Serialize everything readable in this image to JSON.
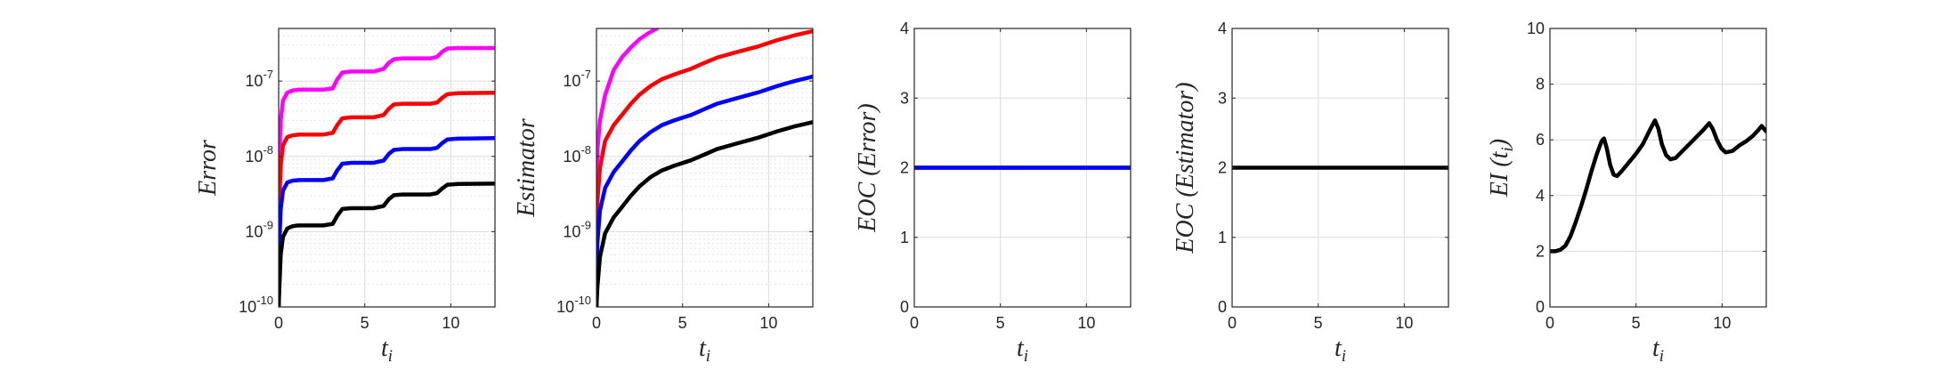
{
  "figure": {
    "background": "#ffffff"
  },
  "chart_data": [
    {
      "type": "line",
      "yscale": "log",
      "xlabel": "t_i",
      "ylabel": "Error",
      "xlim": [
        0,
        12.566
      ],
      "ylim": [
        1e-10,
        5e-07
      ],
      "xticks": [
        0,
        5,
        10
      ],
      "yticks": [
        1e-10,
        1e-09,
        1e-08,
        1e-07
      ],
      "ytick_labels": [
        "10^-10",
        "10^-9",
        "10^-8",
        "10^-7"
      ],
      "grid": true,
      "series": [
        {
          "color": "#ff00ff",
          "x": [
            0,
            0.05,
            0.12,
            0.25,
            0.5,
            0.8,
            1.0,
            1.2,
            2.6,
            3.14,
            3.4,
            3.7,
            4.2,
            5.5,
            6.1,
            6.4,
            6.7,
            7.2,
            8.8,
            9.2,
            9.5,
            9.8,
            10.4,
            12.566
          ],
          "y": [
            1e-10,
            1.2e-08,
            3e-08,
            5.5e-08,
            7e-08,
            7.5e-08,
            7.6e-08,
            7.7e-08,
            7.7e-08,
            8e-08,
            1.05e-07,
            1.3e-07,
            1.34e-07,
            1.34e-07,
            1.45e-07,
            1.75e-07,
            1.95e-07,
            2e-07,
            2e-07,
            2.1e-07,
            2.45e-07,
            2.7e-07,
            2.75e-07,
            2.75e-07
          ]
        },
        {
          "color": "#ff0000",
          "x": [
            0,
            0.05,
            0.12,
            0.25,
            0.5,
            0.8,
            1.0,
            1.2,
            2.6,
            3.14,
            3.4,
            3.7,
            4.2,
            5.5,
            6.1,
            6.4,
            6.7,
            7.2,
            8.8,
            9.2,
            9.5,
            9.8,
            10.4,
            12.566
          ],
          "y": [
            1e-10,
            3e-09,
            7.5e-09,
            1.4e-08,
            1.8e-08,
            1.9e-08,
            1.93e-08,
            1.95e-08,
            1.95e-08,
            2.05e-08,
            2.6e-08,
            3.2e-08,
            3.3e-08,
            3.3e-08,
            3.55e-08,
            4.3e-08,
            4.9e-08,
            5e-08,
            5e-08,
            5.2e-08,
            6e-08,
            6.7e-08,
            6.9e-08,
            7e-08
          ]
        },
        {
          "color": "#0000ff",
          "x": [
            0,
            0.05,
            0.12,
            0.25,
            0.5,
            0.8,
            1.0,
            1.2,
            2.6,
            3.14,
            3.4,
            3.7,
            4.2,
            5.5,
            6.1,
            6.4,
            6.7,
            7.2,
            8.8,
            9.2,
            9.5,
            9.8,
            10.4,
            12.566
          ],
          "y": [
            1e-10,
            8e-10,
            2e-09,
            3.5e-09,
            4.5e-09,
            4.75e-09,
            4.8e-09,
            4.85e-09,
            4.85e-09,
            5.1e-09,
            6.5e-09,
            8e-09,
            8.2e-09,
            8.2e-09,
            8.8e-09,
            1.08e-08,
            1.22e-08,
            1.25e-08,
            1.25e-08,
            1.3e-08,
            1.5e-08,
            1.68e-08,
            1.72e-08,
            1.75e-08
          ]
        },
        {
          "color": "#000000",
          "x": [
            0,
            0.05,
            0.12,
            0.25,
            0.5,
            0.8,
            1.0,
            1.2,
            2.6,
            3.14,
            3.4,
            3.7,
            4.2,
            5.5,
            6.1,
            6.4,
            6.7,
            7.2,
            8.8,
            9.2,
            9.5,
            9.8,
            10.4,
            12.566
          ],
          "y": [
            1e-10,
            2e-10,
            5e-10,
            8.5e-10,
            1.1e-09,
            1.18e-09,
            1.2e-09,
            1.21e-09,
            1.21e-09,
            1.27e-09,
            1.62e-09,
            2e-09,
            2.05e-09,
            2.05e-09,
            2.2e-09,
            2.7e-09,
            3.05e-09,
            3.12e-09,
            3.12e-09,
            3.25e-09,
            3.75e-09,
            4.2e-09,
            4.3e-09,
            4.35e-09
          ]
        }
      ]
    },
    {
      "type": "line",
      "yscale": "log",
      "xlabel": "t_i",
      "ylabel": "Estimator",
      "xlim": [
        0,
        12.566
      ],
      "ylim": [
        1e-10,
        5e-07
      ],
      "xticks": [
        0,
        5,
        10
      ],
      "yticks": [
        1e-10,
        1e-09,
        1e-08,
        1e-07
      ],
      "ytick_labels": [
        "10^-10",
        "10^-9",
        "10^-8",
        "10^-7"
      ],
      "grid": true,
      "series": [
        {
          "color": "#ff00ff",
          "x": [
            0,
            0.05,
            0.2,
            0.5,
            1.0,
            1.5,
            2.0,
            2.5,
            3.0,
            3.5
          ],
          "y": [
            1e-10,
            1.2e-08,
            3e-08,
            6.5e-08,
            1.4e-07,
            2.1e-07,
            2.8e-07,
            3.6e-07,
            4.3e-07,
            5e-07
          ]
        },
        {
          "color": "#ff0000",
          "x": [
            0,
            0.05,
            0.2,
            0.5,
            1.0,
            1.5,
            2.0,
            2.5,
            3.14,
            3.8,
            4.5,
            5.5,
            6.28,
            7.0,
            8.0,
            9.42,
            10.5,
            11.5,
            12.566
          ],
          "y": [
            1e-10,
            2.5e-09,
            7e-09,
            1.6e-08,
            2.6e-08,
            3.6e-08,
            5e-08,
            6.6e-08,
            8.6e-08,
            1.06e-07,
            1.22e-07,
            1.46e-07,
            1.75e-07,
            2.05e-07,
            2.38e-07,
            2.9e-07,
            3.5e-07,
            4.05e-07,
            4.6e-07
          ]
        },
        {
          "color": "#0000ff",
          "x": [
            0,
            0.05,
            0.2,
            0.5,
            1.0,
            1.5,
            2.0,
            2.5,
            3.14,
            3.8,
            4.5,
            5.5,
            6.28,
            7.0,
            8.0,
            9.42,
            10.5,
            11.5,
            12.566
          ],
          "y": [
            1e-10,
            7e-10,
            1.9e-09,
            3.8e-09,
            6.2e-09,
            8.6e-09,
            1.2e-08,
            1.6e-08,
            2.1e-08,
            2.6e-08,
            3e-08,
            3.55e-08,
            4.25e-08,
            5e-08,
            5.8e-08,
            7.1e-08,
            8.6e-08,
            1e-07,
            1.15e-07
          ]
        },
        {
          "color": "#000000",
          "x": [
            0,
            0.05,
            0.2,
            0.5,
            1.0,
            1.5,
            2.0,
            2.5,
            3.14,
            3.8,
            4.5,
            5.5,
            6.28,
            7.0,
            8.0,
            9.42,
            10.5,
            11.5,
            12.566
          ],
          "y": [
            1e-10,
            1.8e-10,
            4.6e-10,
            9.5e-10,
            1.55e-09,
            2.15e-09,
            3e-09,
            4e-09,
            5.3e-09,
            6.5e-09,
            7.5e-09,
            8.9e-09,
            1.06e-08,
            1.25e-08,
            1.45e-08,
            1.78e-08,
            2.15e-08,
            2.5e-08,
            2.85e-08
          ]
        }
      ]
    },
    {
      "type": "line",
      "xlabel": "t_i",
      "ylabel": "EOC (Error)",
      "xlim": [
        0,
        12.566
      ],
      "ylim": [
        0,
        4
      ],
      "xticks": [
        0,
        5,
        10
      ],
      "yticks": [
        0,
        1,
        2,
        3,
        4
      ],
      "grid": true,
      "series": [
        {
          "color": "#000000",
          "x": [
            0,
            12.566
          ],
          "y": [
            2.0,
            2.0
          ]
        },
        {
          "color": "#0000ff",
          "x": [
            0,
            12.566
          ],
          "y": [
            2.0,
            2.0
          ]
        }
      ]
    },
    {
      "type": "line",
      "xlabel": "t_i",
      "ylabel": "EOC (Estimator)",
      "xlim": [
        0,
        12.566
      ],
      "ylim": [
        0,
        4
      ],
      "xticks": [
        0,
        5,
        10
      ],
      "yticks": [
        0,
        1,
        2,
        3,
        4
      ],
      "grid": true,
      "series": [
        {
          "color": "#000000",
          "x": [
            0,
            12.566
          ],
          "y": [
            2.0,
            2.0
          ]
        }
      ]
    },
    {
      "type": "line",
      "xlabel": "t_i",
      "ylabel": "EI (t_i)",
      "xlim": [
        0,
        12.566
      ],
      "ylim": [
        0,
        10
      ],
      "xticks": [
        0,
        5,
        10
      ],
      "yticks": [
        0,
        2,
        4,
        6,
        8,
        10
      ],
      "grid": true,
      "series": [
        {
          "color": "#000000",
          "x": [
            0,
            0.3,
            0.6,
            0.9,
            1.2,
            1.5,
            1.8,
            2.1,
            2.4,
            2.7,
            3.0,
            3.14,
            3.3,
            3.5,
            3.7,
            3.9,
            4.2,
            4.6,
            5.0,
            5.4,
            5.8,
            6.1,
            6.3,
            6.5,
            6.75,
            7.0,
            7.3,
            7.7,
            8.1,
            8.5,
            8.9,
            9.25,
            9.45,
            9.7,
            9.95,
            10.2,
            10.6,
            11.0,
            11.4,
            11.8,
            12.1,
            12.3,
            12.566
          ],
          "y": [
            2.0,
            2.0,
            2.05,
            2.2,
            2.55,
            3.05,
            3.6,
            4.2,
            4.85,
            5.45,
            5.95,
            6.05,
            5.7,
            5.1,
            4.75,
            4.7,
            4.9,
            5.2,
            5.5,
            5.85,
            6.35,
            6.7,
            6.4,
            5.85,
            5.45,
            5.3,
            5.35,
            5.6,
            5.85,
            6.1,
            6.35,
            6.6,
            6.4,
            6.0,
            5.7,
            5.55,
            5.6,
            5.8,
            5.95,
            6.15,
            6.35,
            6.5,
            6.3
          ]
        }
      ]
    }
  ]
}
